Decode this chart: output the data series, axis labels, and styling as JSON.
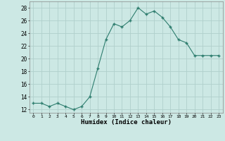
{
  "x": [
    0,
    1,
    2,
    3,
    4,
    5,
    6,
    7,
    8,
    9,
    10,
    11,
    12,
    13,
    14,
    15,
    16,
    17,
    18,
    19,
    20,
    21,
    22,
    23
  ],
  "y": [
    13,
    13,
    12.5,
    13,
    12.5,
    12,
    12.5,
    14,
    18.5,
    23,
    25.5,
    25,
    26,
    28,
    27,
    27.5,
    26.5,
    25,
    23,
    22.5,
    20.5,
    20.5,
    20.5,
    20.5
  ],
  "line_color": "#2e7d6e",
  "marker_color": "#2e7d6e",
  "bg_color": "#cce8e4",
  "grid_color": "#b0d0cc",
  "xlabel": "Humidex (Indice chaleur)",
  "ylabel_ticks": [
    12,
    14,
    16,
    18,
    20,
    22,
    24,
    26,
    28
  ],
  "xlim": [
    -0.5,
    23.5
  ],
  "ylim": [
    11.5,
    29.0
  ],
  "figsize": [
    3.2,
    2.0
  ],
  "dpi": 100
}
